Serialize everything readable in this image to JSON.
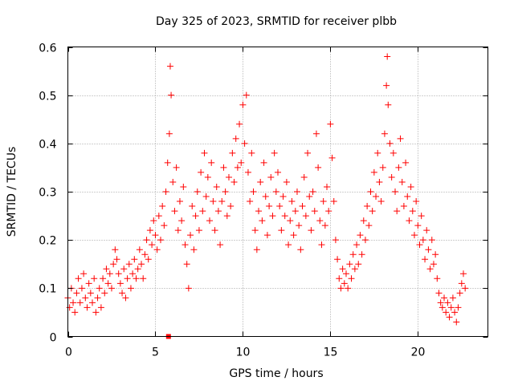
{
  "chart_data": {
    "type": "scatter",
    "title": "Day 325 of 2023, SRMTID for receiver plbb",
    "xlabel": "GPS time / hours",
    "ylabel": "SRMTID / TECUs",
    "xlim": [
      0,
      24
    ],
    "ylim": [
      0,
      0.6
    ],
    "x_ticks": [
      "0",
      "5",
      "10",
      "15",
      "20"
    ],
    "y_ticks": [
      "0",
      "0.1",
      "0.2",
      "0.3",
      "0.4",
      "0.5",
      "0.6"
    ],
    "grid": true,
    "marker": "plus",
    "color": "#ff0000",
    "series": [
      {
        "name": "SRMTID",
        "points": [
          [
            0.0,
            0.08
          ],
          [
            0.1,
            0.06
          ],
          [
            0.2,
            0.1
          ],
          [
            0.3,
            0.07
          ],
          [
            0.4,
            0.05
          ],
          [
            0.5,
            0.09
          ],
          [
            0.6,
            0.12
          ],
          [
            0.7,
            0.07
          ],
          [
            0.8,
            0.1
          ],
          [
            0.9,
            0.13
          ],
          [
            1.0,
            0.08
          ],
          [
            1.1,
            0.06
          ],
          [
            1.2,
            0.11
          ],
          [
            1.3,
            0.09
          ],
          [
            1.4,
            0.07
          ],
          [
            1.5,
            0.12
          ],
          [
            1.6,
            0.05
          ],
          [
            1.7,
            0.08
          ],
          [
            1.8,
            0.1
          ],
          [
            1.9,
            0.06
          ],
          [
            2.0,
            0.12
          ],
          [
            2.1,
            0.09
          ],
          [
            2.2,
            0.14
          ],
          [
            2.3,
            0.11
          ],
          [
            2.4,
            0.13
          ],
          [
            2.5,
            0.1
          ],
          [
            2.6,
            0.15
          ],
          [
            2.7,
            0.18
          ],
          [
            2.8,
            0.16
          ],
          [
            2.9,
            0.13
          ],
          [
            3.0,
            0.11
          ],
          [
            3.1,
            0.09
          ],
          [
            3.2,
            0.14
          ],
          [
            3.3,
            0.08
          ],
          [
            3.4,
            0.12
          ],
          [
            3.5,
            0.15
          ],
          [
            3.6,
            0.1
          ],
          [
            3.7,
            0.13
          ],
          [
            3.8,
            0.16
          ],
          [
            3.9,
            0.12
          ],
          [
            4.0,
            0.14
          ],
          [
            4.1,
            0.18
          ],
          [
            4.2,
            0.15
          ],
          [
            4.3,
            0.12
          ],
          [
            4.4,
            0.17
          ],
          [
            4.5,
            0.2
          ],
          [
            4.6,
            0.16
          ],
          [
            4.7,
            0.22
          ],
          [
            4.8,
            0.19
          ],
          [
            4.9,
            0.24
          ],
          [
            5.0,
            0.21
          ],
          [
            5.1,
            0.18
          ],
          [
            5.2,
            0.25
          ],
          [
            5.3,
            0.2
          ],
          [
            5.4,
            0.27
          ],
          [
            5.5,
            0.23
          ],
          [
            5.6,
            0.3
          ],
          [
            5.7,
            0.36
          ],
          [
            5.8,
            0.42
          ],
          [
            5.85,
            0.56
          ],
          [
            5.9,
            0.5
          ],
          [
            6.0,
            0.32
          ],
          [
            6.1,
            0.26
          ],
          [
            6.2,
            0.35
          ],
          [
            6.3,
            0.22
          ],
          [
            6.4,
            0.28
          ],
          [
            6.5,
            0.24
          ],
          [
            6.6,
            0.31
          ],
          [
            6.7,
            0.19
          ],
          [
            6.8,
            0.15
          ],
          [
            6.9,
            0.1
          ],
          [
            7.0,
            0.21
          ],
          [
            7.1,
            0.27
          ],
          [
            7.2,
            0.18
          ],
          [
            7.3,
            0.25
          ],
          [
            7.4,
            0.3
          ],
          [
            7.5,
            0.22
          ],
          [
            7.6,
            0.34
          ],
          [
            7.7,
            0.26
          ],
          [
            7.8,
            0.38
          ],
          [
            7.9,
            0.29
          ],
          [
            8.0,
            0.33
          ],
          [
            8.1,
            0.24
          ],
          [
            8.2,
            0.36
          ],
          [
            8.3,
            0.28
          ],
          [
            8.4,
            0.22
          ],
          [
            8.5,
            0.31
          ],
          [
            8.6,
            0.26
          ],
          [
            8.7,
            0.19
          ],
          [
            8.8,
            0.28
          ],
          [
            8.9,
            0.35
          ],
          [
            9.0,
            0.3
          ],
          [
            9.1,
            0.25
          ],
          [
            9.2,
            0.33
          ],
          [
            9.3,
            0.27
          ],
          [
            9.4,
            0.38
          ],
          [
            9.5,
            0.32
          ],
          [
            9.6,
            0.41
          ],
          [
            9.7,
            0.35
          ],
          [
            9.8,
            0.44
          ],
          [
            9.9,
            0.36
          ],
          [
            10.0,
            0.48
          ],
          [
            10.1,
            0.4
          ],
          [
            10.2,
            0.5
          ],
          [
            10.3,
            0.34
          ],
          [
            10.4,
            0.28
          ],
          [
            10.5,
            0.38
          ],
          [
            10.6,
            0.3
          ],
          [
            10.7,
            0.22
          ],
          [
            10.8,
            0.18
          ],
          [
            10.9,
            0.26
          ],
          [
            11.0,
            0.32
          ],
          [
            11.1,
            0.24
          ],
          [
            11.2,
            0.36
          ],
          [
            11.3,
            0.29
          ],
          [
            11.4,
            0.21
          ],
          [
            11.5,
            0.27
          ],
          [
            11.6,
            0.33
          ],
          [
            11.7,
            0.25
          ],
          [
            11.8,
            0.38
          ],
          [
            11.9,
            0.3
          ],
          [
            12.0,
            0.34
          ],
          [
            12.1,
            0.27
          ],
          [
            12.2,
            0.22
          ],
          [
            12.3,
            0.29
          ],
          [
            12.4,
            0.25
          ],
          [
            12.5,
            0.32
          ],
          [
            12.6,
            0.19
          ],
          [
            12.7,
            0.24
          ],
          [
            12.8,
            0.28
          ],
          [
            12.9,
            0.21
          ],
          [
            13.0,
            0.26
          ],
          [
            13.1,
            0.3
          ],
          [
            13.2,
            0.23
          ],
          [
            13.3,
            0.18
          ],
          [
            13.4,
            0.27
          ],
          [
            13.5,
            0.33
          ],
          [
            13.6,
            0.25
          ],
          [
            13.7,
            0.38
          ],
          [
            13.8,
            0.29
          ],
          [
            13.9,
            0.22
          ],
          [
            14.0,
            0.3
          ],
          [
            14.1,
            0.26
          ],
          [
            14.2,
            0.42
          ],
          [
            14.3,
            0.35
          ],
          [
            14.4,
            0.24
          ],
          [
            14.5,
            0.19
          ],
          [
            14.6,
            0.28
          ],
          [
            14.7,
            0.23
          ],
          [
            14.8,
            0.31
          ],
          [
            14.9,
            0.26
          ],
          [
            15.0,
            0.44
          ],
          [
            15.1,
            0.37
          ],
          [
            15.2,
            0.28
          ],
          [
            15.3,
            0.2
          ],
          [
            15.4,
            0.16
          ],
          [
            15.5,
            0.12
          ],
          [
            15.6,
            0.1
          ],
          [
            15.7,
            0.14
          ],
          [
            15.8,
            0.11
          ],
          [
            15.9,
            0.13
          ],
          [
            16.0,
            0.1
          ],
          [
            16.1,
            0.15
          ],
          [
            16.2,
            0.12
          ],
          [
            16.3,
            0.17
          ],
          [
            16.4,
            0.14
          ],
          [
            16.5,
            0.19
          ],
          [
            16.6,
            0.15
          ],
          [
            16.7,
            0.21
          ],
          [
            16.8,
            0.17
          ],
          [
            16.9,
            0.24
          ],
          [
            17.0,
            0.2
          ],
          [
            17.1,
            0.27
          ],
          [
            17.2,
            0.23
          ],
          [
            17.3,
            0.3
          ],
          [
            17.4,
            0.26
          ],
          [
            17.5,
            0.34
          ],
          [
            17.6,
            0.29
          ],
          [
            17.7,
            0.38
          ],
          [
            17.8,
            0.32
          ],
          [
            17.9,
            0.28
          ],
          [
            18.0,
            0.35
          ],
          [
            18.1,
            0.42
          ],
          [
            18.2,
            0.52
          ],
          [
            18.25,
            0.58
          ],
          [
            18.3,
            0.48
          ],
          [
            18.4,
            0.4
          ],
          [
            18.5,
            0.33
          ],
          [
            18.6,
            0.38
          ],
          [
            18.7,
            0.3
          ],
          [
            18.8,
            0.26
          ],
          [
            18.9,
            0.35
          ],
          [
            19.0,
            0.41
          ],
          [
            19.1,
            0.32
          ],
          [
            19.2,
            0.27
          ],
          [
            19.3,
            0.36
          ],
          [
            19.4,
            0.29
          ],
          [
            19.5,
            0.24
          ],
          [
            19.6,
            0.31
          ],
          [
            19.7,
            0.26
          ],
          [
            19.8,
            0.21
          ],
          [
            19.9,
            0.28
          ],
          [
            20.0,
            0.23
          ],
          [
            20.1,
            0.19
          ],
          [
            20.2,
            0.25
          ],
          [
            20.3,
            0.2
          ],
          [
            20.4,
            0.16
          ],
          [
            20.5,
            0.22
          ],
          [
            20.6,
            0.18
          ],
          [
            20.7,
            0.14
          ],
          [
            20.8,
            0.2
          ],
          [
            20.9,
            0.15
          ],
          [
            21.0,
            0.17
          ],
          [
            21.1,
            0.12
          ],
          [
            21.2,
            0.09
          ],
          [
            21.3,
            0.07
          ],
          [
            21.4,
            0.06
          ],
          [
            21.5,
            0.08
          ],
          [
            21.6,
            0.05
          ],
          [
            21.7,
            0.07
          ],
          [
            21.8,
            0.04
          ],
          [
            21.9,
            0.06
          ],
          [
            22.0,
            0.08
          ],
          [
            22.1,
            0.05
          ],
          [
            22.2,
            0.03
          ],
          [
            22.3,
            0.06
          ],
          [
            22.4,
            0.09
          ],
          [
            22.5,
            0.11
          ],
          [
            22.6,
            0.13
          ],
          [
            22.7,
            0.1
          ]
        ]
      }
    ],
    "outlier_marker": {
      "x": 5.75,
      "y": 0.0
    }
  }
}
